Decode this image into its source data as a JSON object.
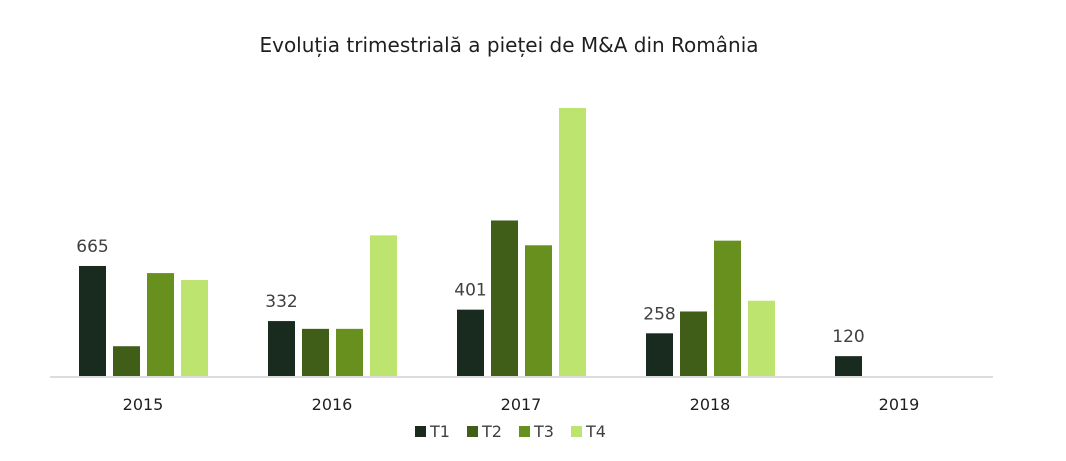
{
  "chart_data": {
    "type": "bar",
    "title": "Evoluția trimestrială a pieței de M&A din România",
    "xlabel": "",
    "ylabel": "",
    "categories": [
      "2015",
      "2016",
      "2017",
      "2018",
      "2019"
    ],
    "series": [
      {
        "name": "T1",
        "color": "#182b1e",
        "values": [
          665,
          332,
          401,
          258,
          120
        ]
      },
      {
        "name": "T2",
        "color": "#415e19",
        "values": [
          180,
          285,
          940,
          390,
          null
        ]
      },
      {
        "name": "T3",
        "color": "#67901f",
        "values": [
          622,
          285,
          790,
          818,
          null
        ]
      },
      {
        "name": "T4",
        "color": "#bde46f",
        "values": [
          580,
          850,
          1620,
          455,
          null
        ]
      }
    ],
    "data_labels": {
      "series": "T1",
      "values": [
        "665",
        "332",
        "401",
        "258",
        "120"
      ]
    },
    "ylim": [
      0,
      1650
    ],
    "grid": false,
    "legend": "bottom"
  }
}
